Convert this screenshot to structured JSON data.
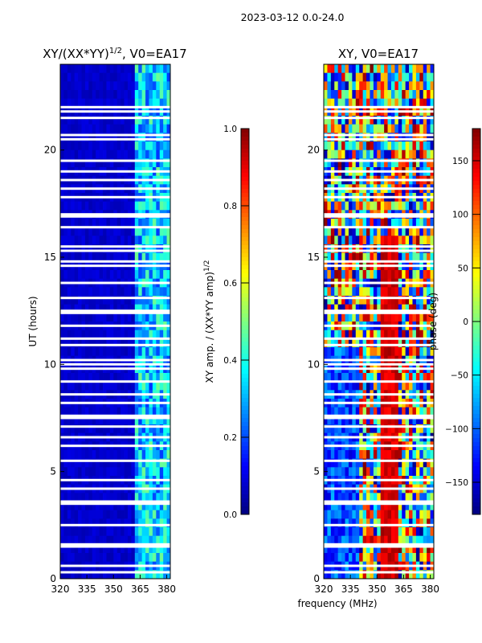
{
  "suptitle": "2023-03-12 0.0-24.0",
  "xlabel": "frequency (MHz)",
  "chart_data": [
    {
      "type": "heatmap",
      "title_main": "XY/(XX*YY)",
      "title_sup": "1/2",
      "title_rest": ", V0=EA17",
      "ylabel": "UT (hours)",
      "xlim": [
        320,
        382
      ],
      "ylim": [
        0,
        24
      ],
      "xticks": [
        320,
        335,
        350,
        365,
        380
      ],
      "yticks": [
        0,
        5,
        10,
        15,
        20
      ],
      "colorbar": {
        "label": "XY amp. / (XX*YY amp)",
        "label_sup": "1/2",
        "range": [
          0.0,
          1.0
        ],
        "ticks": [
          "0.0",
          "0.2",
          "0.4",
          "0.6",
          "0.8",
          "1.0"
        ],
        "tick_values": [
          0.0,
          0.2,
          0.4,
          0.6,
          0.8,
          1.0
        ]
      },
      "features": {
        "background_value": 0.05,
        "bright_band_mhz": [
          363,
          382
        ],
        "bright_band_value": 0.35
      }
    },
    {
      "type": "heatmap",
      "title": "XY, V0=EA17",
      "ylabel": "",
      "xlim": [
        320,
        382
      ],
      "ylim": [
        0,
        24
      ],
      "xticks": [
        320,
        335,
        350,
        365,
        380
      ],
      "yticks": [
        0,
        5,
        10,
        15,
        20
      ],
      "colorbar": {
        "label": "phase (deg)",
        "range": [
          -180,
          180
        ],
        "ticks": [
          "−150",
          "−100",
          "−50",
          "0",
          "50",
          "100",
          "150"
        ],
        "tick_values": [
          -150,
          -100,
          -50,
          0,
          50,
          100,
          150
        ]
      },
      "features": {
        "band_center_mhz": 357,
        "band_center_value": 150
      }
    }
  ],
  "gap_rows_hours": [
    0.3,
    0.6,
    1.5,
    1.6,
    2.5,
    3.5,
    3.6,
    4.2,
    4.6,
    5.5,
    6.2,
    6.6,
    7.1,
    7.5,
    7.6,
    8.2,
    8.6,
    9.2,
    9.8,
    10.0,
    10.2,
    10.9,
    11.2,
    11.8,
    12.4,
    12.5,
    13.1,
    13.8,
    14.6,
    14.8,
    15.3,
    15.5,
    16.4,
    16.9,
    17.0,
    17.8,
    18.2,
    18.6,
    19.0,
    19.5,
    20.5,
    20.7,
    21.5,
    21.8,
    22.0
  ]
}
